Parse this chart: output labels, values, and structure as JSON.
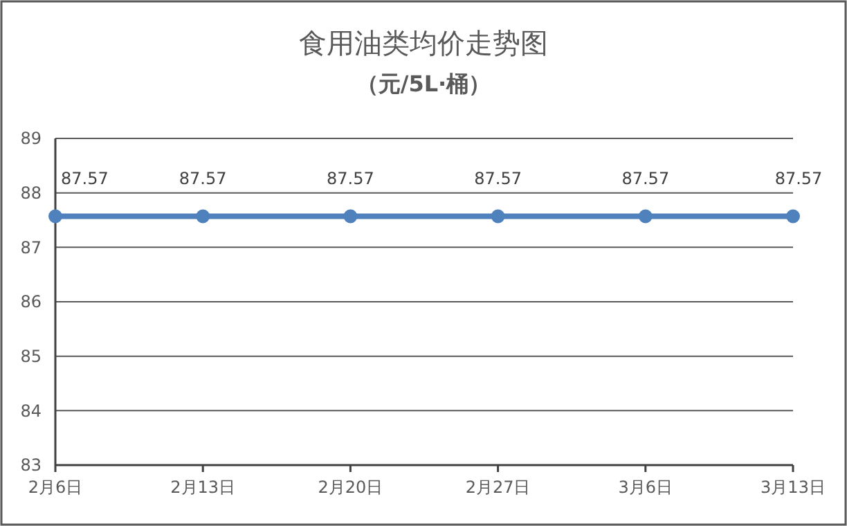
{
  "chart_data": {
    "type": "line",
    "title": "食用油类均价走势图",
    "subtitle": "（元/5L·桶）",
    "categories": [
      "2月6日",
      "2月13日",
      "2月20日",
      "2月27日",
      "3月6日",
      "3月13日"
    ],
    "series": [
      {
        "color": "#4f81bd",
        "values": [
          87.57,
          87.57,
          87.57,
          87.57,
          87.57,
          87.57
        ]
      }
    ],
    "ylim": [
      83,
      89
    ],
    "yticks": [
      83,
      84,
      85,
      86,
      87,
      88,
      89
    ],
    "grid": "y",
    "marker": "circle",
    "line_style": "solid",
    "data_labels": true
  }
}
